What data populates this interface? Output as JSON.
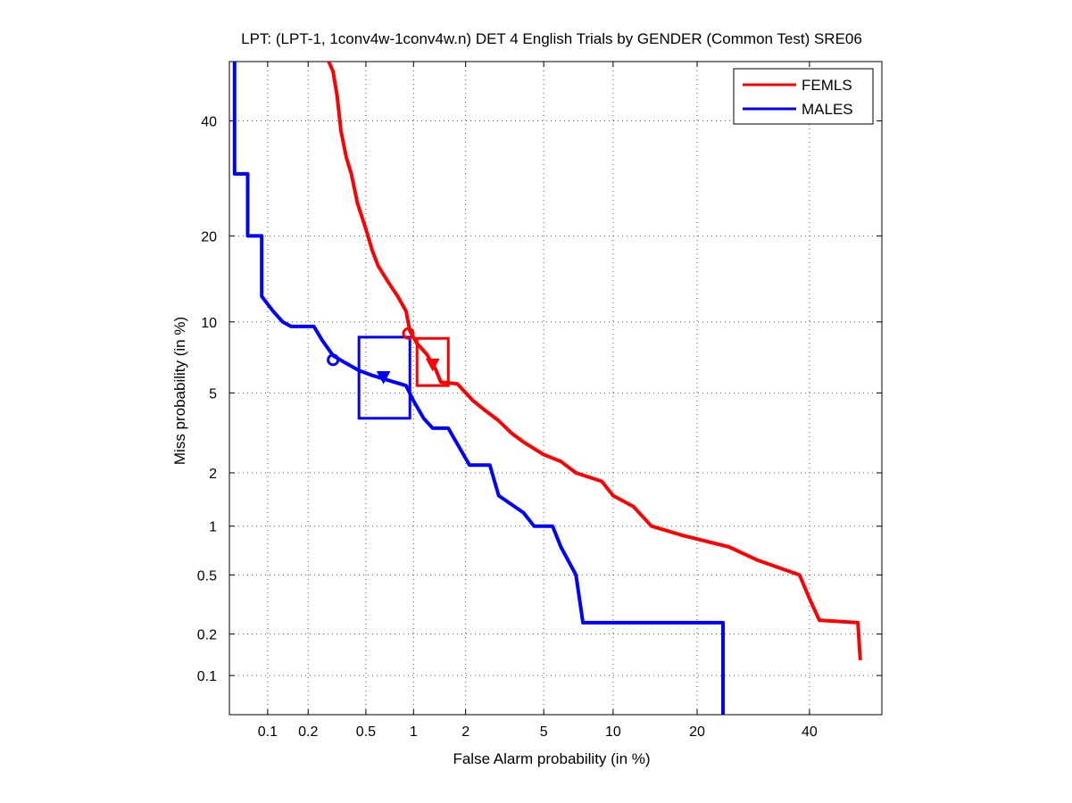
{
  "chart_data": {
    "type": "line",
    "title": "LPT: (LPT-1, 1conv4w-1conv4w.n) DET 4 English Trials by GENDER (Common Test) SRE06",
    "xlabel": "False Alarm probability (in %)",
    "ylabel": "Miss probability (in %)",
    "x_scale": "probit",
    "y_scale": "probit",
    "xlim": [
      0.05,
      55
    ],
    "ylim": [
      0.05,
      52
    ],
    "grid": true,
    "legend_position": "top-right",
    "x_ticks": [
      0.1,
      0.2,
      0.5,
      1,
      2,
      5,
      10,
      20,
      40
    ],
    "x_tick_labels": [
      "0.1",
      "0.2",
      "0.5",
      "1",
      "2",
      "5",
      "10",
      "20",
      "40"
    ],
    "y_ticks": [
      0.1,
      0.2,
      0.5,
      1,
      2,
      5,
      10,
      20,
      40
    ],
    "y_tick_labels": [
      "0.1",
      "0.2",
      "0.5",
      "1",
      "2",
      "5",
      "10",
      "20",
      "40"
    ],
    "series": [
      {
        "name": "FEMLS",
        "color": "#ff0000",
        "points": [
          [
            0.28,
            52
          ],
          [
            0.3,
            50
          ],
          [
            0.32,
            45
          ],
          [
            0.34,
            38
          ],
          [
            0.37,
            33
          ],
          [
            0.4,
            30
          ],
          [
            0.44,
            25
          ],
          [
            0.5,
            21
          ],
          [
            0.55,
            18
          ],
          [
            0.6,
            16
          ],
          [
            0.7,
            14
          ],
          [
            0.8,
            12.5
          ],
          [
            0.9,
            11
          ],
          [
            0.95,
            9.2
          ],
          [
            1.05,
            8.2
          ],
          [
            1.2,
            7.4
          ],
          [
            1.35,
            6.4
          ],
          [
            1.45,
            5.6
          ],
          [
            1.8,
            5.5
          ],
          [
            2.2,
            4.6
          ],
          [
            2.5,
            4.2
          ],
          [
            3.0,
            3.7
          ],
          [
            3.5,
            3.2
          ],
          [
            4.0,
            2.9
          ],
          [
            5.0,
            2.5
          ],
          [
            6.0,
            2.3
          ],
          [
            7.0,
            2.0
          ],
          [
            9.0,
            1.8
          ],
          [
            10.0,
            1.5
          ],
          [
            12.0,
            1.3
          ],
          [
            14.0,
            1.0
          ],
          [
            18.0,
            0.88
          ],
          [
            25.0,
            0.75
          ],
          [
            30.0,
            0.62
          ],
          [
            38.0,
            0.5
          ],
          [
            40.0,
            0.35
          ],
          [
            42.0,
            0.25
          ],
          [
            50.0,
            0.24
          ],
          [
            50.5,
            0.13
          ]
        ]
      },
      {
        "name": "MALES",
        "color": "#0000ff",
        "points": [
          [
            0.055,
            52
          ],
          [
            0.055,
            30
          ],
          [
            0.07,
            30
          ],
          [
            0.07,
            20
          ],
          [
            0.09,
            20
          ],
          [
            0.09,
            12.5
          ],
          [
            0.11,
            11
          ],
          [
            0.13,
            10
          ],
          [
            0.15,
            9.6
          ],
          [
            0.22,
            9.6
          ],
          [
            0.25,
            8.5
          ],
          [
            0.3,
            7.3
          ],
          [
            0.35,
            6.9
          ],
          [
            0.45,
            6.3
          ],
          [
            0.55,
            6.0
          ],
          [
            0.7,
            5.7
          ],
          [
            0.9,
            5.4
          ],
          [
            1.0,
            4.6
          ],
          [
            1.15,
            3.8
          ],
          [
            1.3,
            3.4
          ],
          [
            1.6,
            3.4
          ],
          [
            1.9,
            2.6
          ],
          [
            2.1,
            2.2
          ],
          [
            2.7,
            2.2
          ],
          [
            3.0,
            1.5
          ],
          [
            4.0,
            1.2
          ],
          [
            4.5,
            1.0
          ],
          [
            5.5,
            1.0
          ],
          [
            6.0,
            0.75
          ],
          [
            7.0,
            0.5
          ],
          [
            7.5,
            0.24
          ],
          [
            24.0,
            0.24
          ],
          [
            24.0,
            0.05
          ]
        ]
      }
    ],
    "markers": [
      {
        "series": "FEMLS",
        "shape": "circle",
        "x": 0.93,
        "y": 9.0
      },
      {
        "series": "FEMLS",
        "shape": "triangle-down",
        "x": 1.3,
        "y": 6.7
      },
      {
        "series": "MALES",
        "shape": "circle",
        "x": 0.3,
        "y": 7.0
      },
      {
        "series": "MALES",
        "shape": "triangle-down",
        "x": 0.65,
        "y": 5.9
      }
    ],
    "boxes": [
      {
        "series": "FEMLS",
        "x": [
          1.05,
          1.6
        ],
        "y": [
          5.4,
          8.6
        ]
      },
      {
        "series": "MALES",
        "x": [
          0.45,
          0.95
        ],
        "y": [
          3.8,
          8.7
        ]
      }
    ]
  }
}
